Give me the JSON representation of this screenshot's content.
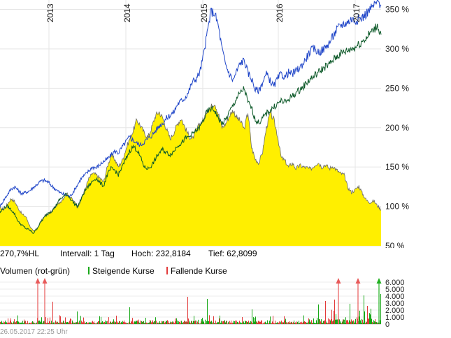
{
  "chart_data": [
    {
      "type": "line",
      "x_ticks": [
        "2013",
        "2014",
        "2015",
        "2016",
        "2017"
      ],
      "y_ticks": [
        "50 %",
        "100 %",
        "150 %",
        "200 %",
        "250 %",
        "300 %",
        "350 %"
      ],
      "ylim": [
        50,
        362
      ],
      "grid": true,
      "series": [
        {
          "kind": "area",
          "color": "#ffef00",
          "values": [
            98,
            96,
            103,
            110,
            106,
            97,
            90,
            87,
            76,
            68,
            72,
            80,
            88,
            90,
            94,
            100,
            104,
            110,
            116,
            112,
            106,
            100,
            110,
            122,
            135,
            142,
            140,
            136,
            131,
            150,
            165,
            160,
            150,
            158,
            172,
            185,
            196,
            210,
            202,
            193,
            188,
            200,
            215,
            220,
            212,
            198,
            186,
            194,
            205,
            212,
            200,
            190,
            185,
            196,
            205,
            210,
            222,
            226,
            232,
            218,
            200,
            205,
            215,
            222,
            213,
            208,
            198,
            220,
            175,
            160,
            155,
            170,
            200,
            218,
            210,
            190,
            162,
            158,
            150,
            155,
            148,
            152,
            150,
            149,
            147,
            152,
            156,
            150,
            153,
            148,
            151,
            146,
            142,
            140,
            124,
            118,
            121,
            126,
            116,
            108,
            105,
            107,
            101,
            96
          ]
        },
        {
          "kind": "line",
          "color": "#1f45c8",
          "values": [
            100,
            108,
            115,
            122,
            125,
            120,
            116,
            118,
            120,
            124,
            128,
            132,
            133,
            131,
            126,
            122,
            118,
            116,
            114,
            113,
            120,
            128,
            136,
            140,
            145,
            150,
            149,
            153,
            157,
            160,
            165,
            170,
            168,
            175,
            182,
            188,
            184,
            180,
            178,
            182,
            186,
            190,
            196,
            202,
            206,
            212,
            216,
            220,
            230,
            234,
            238,
            246,
            258,
            262,
            270,
            292,
            320,
            348,
            345,
            330,
            300,
            280,
            268,
            260,
            272,
            282,
            286,
            270,
            262,
            248,
            247,
            258,
            268,
            260,
            252,
            262,
            268,
            264,
            270,
            268,
            272,
            276,
            282,
            290,
            298,
            300,
            296,
            298,
            302,
            308,
            316,
            324,
            330,
            332,
            334,
            338,
            336,
            338,
            340,
            345,
            350,
            355,
            360,
            356
          ]
        },
        {
          "kind": "line",
          "color": "#0e5a2a",
          "values": [
            92,
            98,
            100,
            96,
            90,
            80,
            76,
            72,
            70,
            66,
            72,
            80,
            86,
            92,
            94,
            100,
            108,
            112,
            116,
            110,
            104,
            100,
            110,
            120,
            126,
            132,
            136,
            130,
            126,
            140,
            148,
            146,
            140,
            150,
            160,
            170,
            176,
            172,
            162,
            150,
            148,
            152,
            160,
            168,
            172,
            168,
            166,
            170,
            178,
            180,
            186,
            188,
            192,
            196,
            200,
            210,
            220,
            224,
            222,
            212,
            205,
            210,
            220,
            228,
            238,
            244,
            250,
            232,
            225,
            210,
            206,
            212,
            218,
            222,
            226,
            230,
            234,
            232,
            236,
            240,
            244,
            248,
            252,
            258,
            262,
            266,
            270,
            274,
            278,
            280,
            286,
            290,
            294,
            296,
            298,
            300,
            302,
            306,
            310,
            314,
            320,
            324,
            330,
            318
          ]
        }
      ]
    },
    {
      "type": "bar",
      "series_names": [
        "Volumen (rot-grün)",
        "Steigende Kurse",
        "Fallende Kurse"
      ],
      "y_ticks": [
        "6.000",
        "5.000",
        "4.000",
        "3.000",
        "2.000",
        "1.000",
        "0"
      ],
      "ylim": [
        0,
        6000
      ],
      "outliers_rising": [
        542
      ],
      "outliers_falling": [
        54,
        64,
        484,
        512
      ],
      "peaks": [
        {
          "i": 75,
          "v": 3200,
          "up": false
        },
        {
          "i": 110,
          "v": 1800,
          "up": true
        },
        {
          "i": 185,
          "v": 2400,
          "up": true
        },
        {
          "i": 268,
          "v": 3900,
          "up": false
        },
        {
          "i": 296,
          "v": 3600,
          "up": true
        },
        {
          "i": 360,
          "v": 2100,
          "up": true
        },
        {
          "i": 455,
          "v": 2800,
          "up": true
        },
        {
          "i": 465,
          "v": 3300,
          "up": false
        },
        {
          "i": 478,
          "v": 3500,
          "up": false
        },
        {
          "i": 500,
          "v": 2900,
          "up": true
        },
        {
          "i": 520,
          "v": 4100,
          "up": true
        },
        {
          "i": 525,
          "v": 2600,
          "up": false
        },
        {
          "i": 530,
          "v": 2200,
          "up": true
        },
        {
          "i": 544,
          "v": 4300,
          "up": true
        }
      ],
      "colors": {
        "rising": "#18a818",
        "falling": "#e23a3a",
        "outlier_rising": "#20b020",
        "outlier_falling": "#e85a5a"
      }
    }
  ],
  "info": {
    "perf": "270,7%HL",
    "interval": "Intervall: 1 Tag",
    "high": "Hoch: 232,8184",
    "low": "Tief: 62,8099"
  },
  "legend": {
    "volume": "Volumen (rot-grün)",
    "rising": "Steigende Kurse",
    "falling": "Fallende Kurse"
  },
  "timestamp": "26.05.2017 22:25 Uhr"
}
